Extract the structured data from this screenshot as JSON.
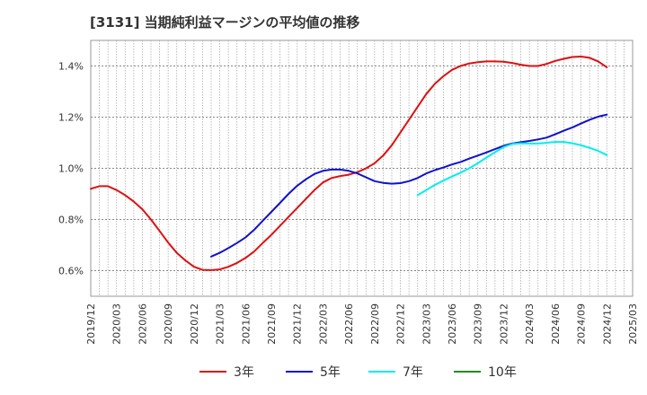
{
  "chart_data": {
    "type": "line",
    "title": "[3131]  当期純利益マージンの平均値の推移",
    "xlabel": "",
    "ylabel": "",
    "ylim": [
      0.5,
      1.5
    ],
    "yticks": [
      0.6,
      0.8,
      1.0,
      1.2,
      1.4
    ],
    "ytick_labels": [
      "0.6%",
      "0.8%",
      "1.0%",
      "1.2%",
      "1.4%"
    ],
    "x_tick_labels": [
      "2019/12",
      "2020/03",
      "2020/06",
      "2020/09",
      "2020/12",
      "2021/03",
      "2021/06",
      "2021/09",
      "2021/12",
      "2022/03",
      "2022/06",
      "2022/09",
      "2022/12",
      "2023/03",
      "2023/06",
      "2023/09",
      "2023/12",
      "2024/03",
      "2024/06",
      "2024/09",
      "2024/12",
      "2025/03"
    ],
    "grid": true,
    "legend_position": "bottom",
    "series": [
      {
        "name": "3年",
        "color": "#dd1111",
        "x": [
          "2019/12",
          "2020/01",
          "2020/02",
          "2020/03",
          "2020/04",
          "2020/05",
          "2020/06",
          "2020/07",
          "2020/08",
          "2020/09",
          "2020/10",
          "2020/11",
          "2020/12",
          "2021/01",
          "2021/02",
          "2021/03",
          "2021/04",
          "2021/05",
          "2021/06",
          "2021/07",
          "2021/08",
          "2021/09",
          "2021/10",
          "2021/11",
          "2021/12",
          "2022/01",
          "2022/02",
          "2022/03",
          "2022/04",
          "2022/05",
          "2022/06",
          "2022/07",
          "2022/08",
          "2022/09",
          "2022/10",
          "2022/11",
          "2022/12",
          "2023/01",
          "2023/02",
          "2023/03",
          "2023/04",
          "2023/05",
          "2023/06",
          "2023/07",
          "2023/08",
          "2023/09",
          "2023/10",
          "2023/11",
          "2023/12",
          "2024/01",
          "2024/02",
          "2024/03",
          "2024/04",
          "2024/05",
          "2024/06",
          "2024/07",
          "2024/08",
          "2024/09",
          "2024/10",
          "2024/11",
          "2024/12"
        ],
        "values": [
          0.92,
          0.93,
          0.93,
          0.915,
          0.895,
          0.87,
          0.84,
          0.8,
          0.755,
          0.71,
          0.67,
          0.64,
          0.615,
          0.603,
          0.602,
          0.605,
          0.615,
          0.63,
          0.65,
          0.675,
          0.708,
          0.74,
          0.775,
          0.81,
          0.845,
          0.88,
          0.915,
          0.945,
          0.962,
          0.97,
          0.975,
          0.985,
          1.0,
          1.02,
          1.05,
          1.09,
          1.14,
          1.19,
          1.24,
          1.29,
          1.33,
          1.36,
          1.385,
          1.4,
          1.41,
          1.415,
          1.418,
          1.418,
          1.417,
          1.412,
          1.405,
          1.4,
          1.4,
          1.408,
          1.42,
          1.428,
          1.435,
          1.437,
          1.432,
          1.418,
          1.395
        ]
      },
      {
        "name": "5年",
        "color": "#1111cc",
        "x": [
          "2021/02",
          "2021/03",
          "2021/04",
          "2021/05",
          "2021/06",
          "2021/07",
          "2021/08",
          "2021/09",
          "2021/10",
          "2021/11",
          "2021/12",
          "2022/01",
          "2022/02",
          "2022/03",
          "2022/04",
          "2022/05",
          "2022/06",
          "2022/07",
          "2022/08",
          "2022/09",
          "2022/10",
          "2022/11",
          "2022/12",
          "2023/01",
          "2023/02",
          "2023/03",
          "2023/04",
          "2023/05",
          "2023/06",
          "2023/07",
          "2023/08",
          "2023/09",
          "2023/10",
          "2023/11",
          "2023/12",
          "2024/01",
          "2024/02",
          "2024/03",
          "2024/04",
          "2024/05",
          "2024/06",
          "2024/07",
          "2024/08",
          "2024/09",
          "2024/10",
          "2024/11",
          "2024/12"
        ],
        "values": [
          0.655,
          0.67,
          0.688,
          0.708,
          0.73,
          0.76,
          0.795,
          0.83,
          0.865,
          0.9,
          0.932,
          0.957,
          0.978,
          0.99,
          0.995,
          0.995,
          0.99,
          0.98,
          0.965,
          0.95,
          0.943,
          0.94,
          0.942,
          0.95,
          0.962,
          0.98,
          0.993,
          1.003,
          1.015,
          1.025,
          1.038,
          1.05,
          1.062,
          1.075,
          1.088,
          1.097,
          1.102,
          1.107,
          1.113,
          1.12,
          1.133,
          1.147,
          1.16,
          1.175,
          1.19,
          1.202,
          1.21
        ]
      },
      {
        "name": "7年",
        "color": "#00eeee",
        "x": [
          "2023/02",
          "2023/03",
          "2023/04",
          "2023/05",
          "2023/06",
          "2023/07",
          "2023/08",
          "2023/09",
          "2023/10",
          "2023/11",
          "2023/12",
          "2024/01",
          "2024/02",
          "2024/03",
          "2024/04",
          "2024/05",
          "2024/06",
          "2024/07",
          "2024/08",
          "2024/09",
          "2024/10",
          "2024/11",
          "2024/12"
        ],
        "values": [
          0.895,
          0.915,
          0.935,
          0.952,
          0.968,
          0.983,
          1.0,
          1.02,
          1.042,
          1.063,
          1.083,
          1.095,
          1.098,
          1.097,
          1.097,
          1.1,
          1.103,
          1.103,
          1.098,
          1.09,
          1.08,
          1.068,
          1.052
        ]
      },
      {
        "name": "10年",
        "color": "#228b22",
        "x": [],
        "values": []
      }
    ]
  }
}
